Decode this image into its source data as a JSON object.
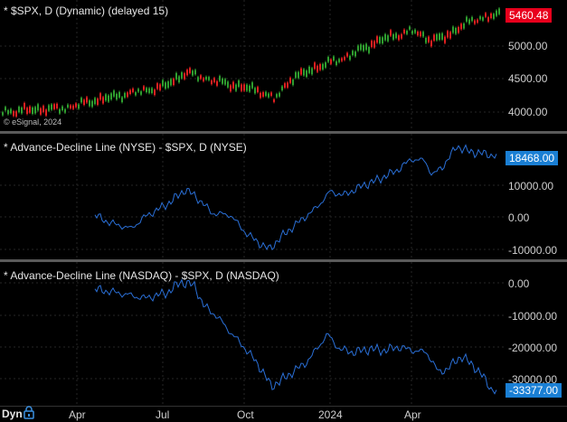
{
  "panes": [
    {
      "title": "* $SPX, D (Dynamic) (delayed 15)",
      "last_value": "5460.48",
      "last_color": "#e8001c",
      "ticks": [
        "5000.00",
        "4500.00",
        "4000.00"
      ]
    },
    {
      "title": "* Advance-Decline Line (NYSE) - $SPX, D (NYSE)",
      "last_value": "18468.00",
      "last_color": "#1a7fd4",
      "ticks": [
        "10000.00",
        "0.00",
        "-10000.00"
      ]
    },
    {
      "title": "* Advance-Decline Line (NASDAQ) - $SPX, D (NASDAQ)",
      "last_value": "-33377.00",
      "last_color": "#1a7fd4",
      "ticks": [
        "0.00",
        "-10000.00",
        "-20000.00",
        "-30000.00"
      ]
    }
  ],
  "watermark": "© eSignal, 2024",
  "x_labels": [
    "Apr",
    "Jul",
    "Oct",
    "2024",
    "Apr"
  ],
  "bottom": {
    "mode": "Dyn"
  },
  "icons": {
    "lock": "lock-icon"
  },
  "colors": {
    "up": "#2f9e2f",
    "down": "#e02020",
    "line": "#2a6fd6"
  }
}
